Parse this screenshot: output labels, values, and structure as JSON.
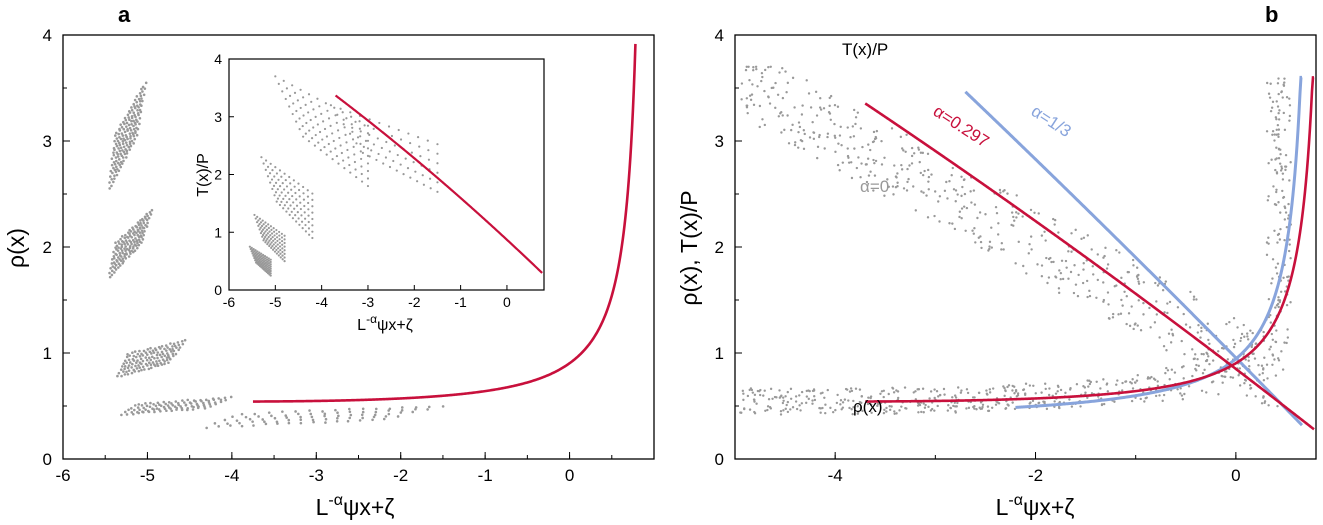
{
  "colors": {
    "alpha0": "#999999",
    "alpha0297": "#c8103c",
    "alpha13": "#88a4dc",
    "axis": "#000000"
  },
  "panels": {
    "a": {
      "letter": "a"
    },
    "b": {
      "letter": "b"
    }
  },
  "chart_data": [
    {
      "id": "panel-a",
      "type": "scatter",
      "xlabel_base": "L",
      "xlabel_sup": "-α",
      "xlabel_rest": "ψx+ζ",
      "ylabel": "ρ(x)",
      "xlim": [
        -6,
        1
      ],
      "ylim": [
        0,
        4
      ],
      "xticks": [
        "-6",
        "-5",
        "-4",
        "-3",
        "-2",
        "-1",
        "0"
      ],
      "yticks": [
        "0",
        "1",
        "2",
        "3",
        "4"
      ],
      "series": [
        {
          "style": "gray-bands",
          "bands": [
            {
              "x0": -5.45,
              "x1": -5.02,
              "y0": 2.55,
              "y1": 3.55,
              "rows": 10
            },
            {
              "x0": -5.45,
              "x1": -4.95,
              "y0": 1.72,
              "y1": 2.35,
              "rows": 9
            },
            {
              "x0": -5.35,
              "x1": -4.55,
              "y0": 0.78,
              "y1": 1.2,
              "rows": 8
            },
            {
              "x0": -5.3,
              "x1": -4.0,
              "y0": 0.42,
              "y1": 0.62,
              "rows": 6
            },
            {
              "x0": -4.3,
              "x1": -1.5,
              "y0": 0.3,
              "y1": 0.55,
              "rows": 5
            }
          ]
        },
        {
          "style": "red-curve",
          "curve": "rho",
          "x_range": [
            -3.75,
            0.78
          ]
        }
      ],
      "inset": {
        "xlabel_base": "L",
        "xlabel_sup": "-α",
        "xlabel_rest": "ψx+ζ",
        "ylabel": "T(x)/P",
        "xlim": [
          -6,
          0.8
        ],
        "ylim": [
          0,
          4
        ],
        "xticks": [
          "-6",
          "-5",
          "-4",
          "-3",
          "-2",
          "-1",
          "0"
        ],
        "yticks": [
          "0",
          "1",
          "2",
          "3",
          "4"
        ],
        "bands": [
          {
            "x0": -5.55,
            "x1": -5.1,
            "y0": 0.25,
            "y1": 0.75,
            "rows": 8
          },
          {
            "x0": -5.45,
            "x1": -4.8,
            "y0": 0.5,
            "y1": 1.3,
            "rows": 8
          },
          {
            "x0": -5.3,
            "x1": -4.2,
            "y0": 0.9,
            "y1": 2.3,
            "rows": 8
          },
          {
            "x0": -5.0,
            "x1": -3.0,
            "y0": 1.8,
            "y1": 3.7,
            "rows": 9
          },
          {
            "x0": -3.8,
            "x1": -1.5,
            "y0": 1.7,
            "y1": 3.2,
            "rows": 6
          }
        ],
        "red_x_range": [
          -3.7,
          0.78
        ]
      }
    },
    {
      "id": "panel-b",
      "type": "scatter",
      "xlabel_base": "L",
      "xlabel_sup": "-α",
      "xlabel_rest": "ψx+ζ",
      "ylabel": "ρ(x), T(x)/P",
      "xlim": [
        -5,
        0.8
      ],
      "ylim": [
        0,
        4
      ],
      "xticks": [
        "-4",
        "-2",
        "0"
      ],
      "yticks": [
        "0",
        "1",
        "2",
        "3",
        "4"
      ],
      "annotations": {
        "T_label": "T(x)/P",
        "rho_label": "ρ(x)",
        "alpha0": "α=0",
        "alpha0297": "α=0.297",
        "alpha13": "α=1/3"
      },
      "series": [
        {
          "name": "α=0",
          "style": "gray-scatter",
          "x_range": [
            -4.95,
            0.55
          ]
        },
        {
          "name": "α=0.297",
          "style": "red-curves",
          "x_range": [
            -3.7,
            0.78
          ]
        },
        {
          "name": "α=1/3",
          "style": "blue-curves",
          "x_range": [
            -2.7,
            0.68
          ]
        }
      ]
    }
  ]
}
